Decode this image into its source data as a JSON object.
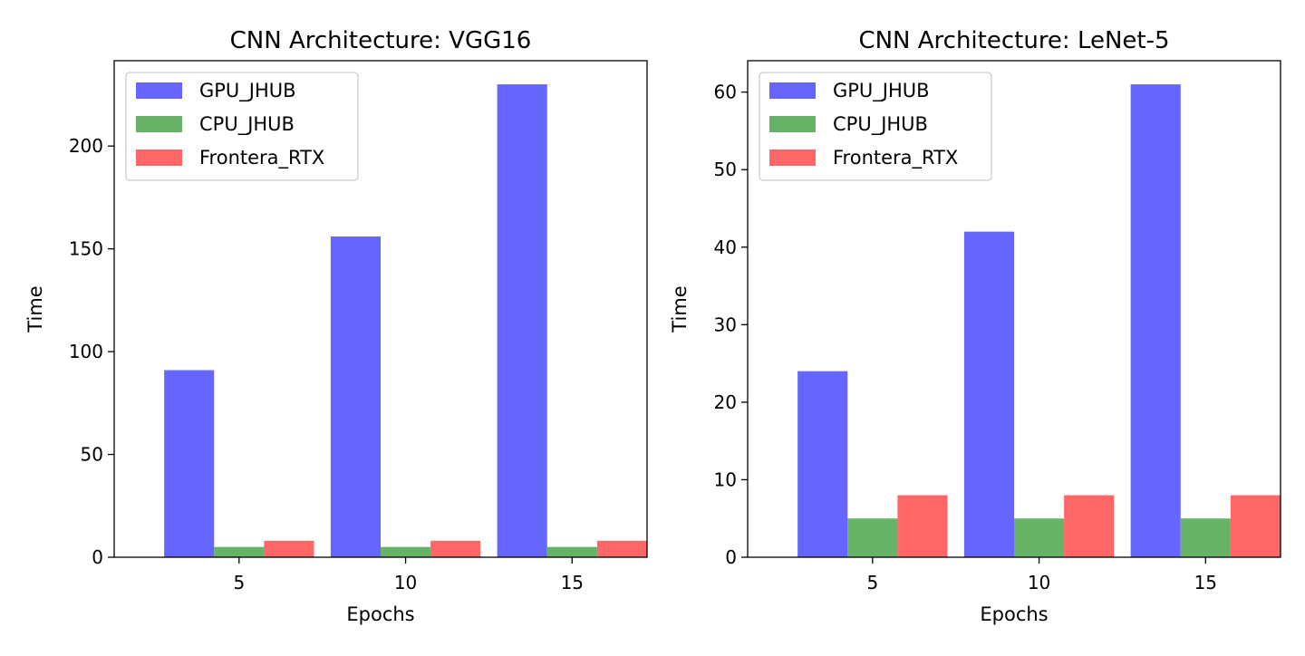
{
  "chart_data": [
    {
      "type": "bar",
      "title": "CNN Architecture: VGG16",
      "xlabel": "Epochs",
      "ylabel": "Time",
      "categories": [
        "5",
        "10",
        "15"
      ],
      "series": [
        {
          "name": "GPU_JHUB",
          "values": [
            91,
            156,
            230
          ],
          "color": "#6666ff"
        },
        {
          "name": "CPU_JHUB",
          "values": [
            5,
            5,
            5
          ],
          "color": "#66b266"
        },
        {
          "name": "Frontera_RTX",
          "values": [
            8,
            8,
            8
          ],
          "color": "#ff6666"
        }
      ],
      "yticks": [
        0,
        50,
        100,
        150,
        200
      ],
      "ylim": [
        0,
        241.5
      ],
      "grid": false,
      "legend_position": "top-left"
    },
    {
      "type": "bar",
      "title": "CNN Architecture: LeNet-5",
      "xlabel": "Epochs",
      "ylabel": "Time",
      "categories": [
        "5",
        "10",
        "15"
      ],
      "series": [
        {
          "name": "GPU_JHUB",
          "values": [
            24,
            42,
            61
          ],
          "color": "#6666ff"
        },
        {
          "name": "CPU_JHUB",
          "values": [
            5,
            5,
            5
          ],
          "color": "#66b266"
        },
        {
          "name": "Frontera_RTX",
          "values": [
            8,
            8,
            8
          ],
          "color": "#ff6666"
        }
      ],
      "yticks": [
        0,
        10,
        20,
        30,
        40,
        50,
        60
      ],
      "ylim": [
        0,
        64.05
      ],
      "grid": false,
      "legend_position": "top-left"
    }
  ]
}
